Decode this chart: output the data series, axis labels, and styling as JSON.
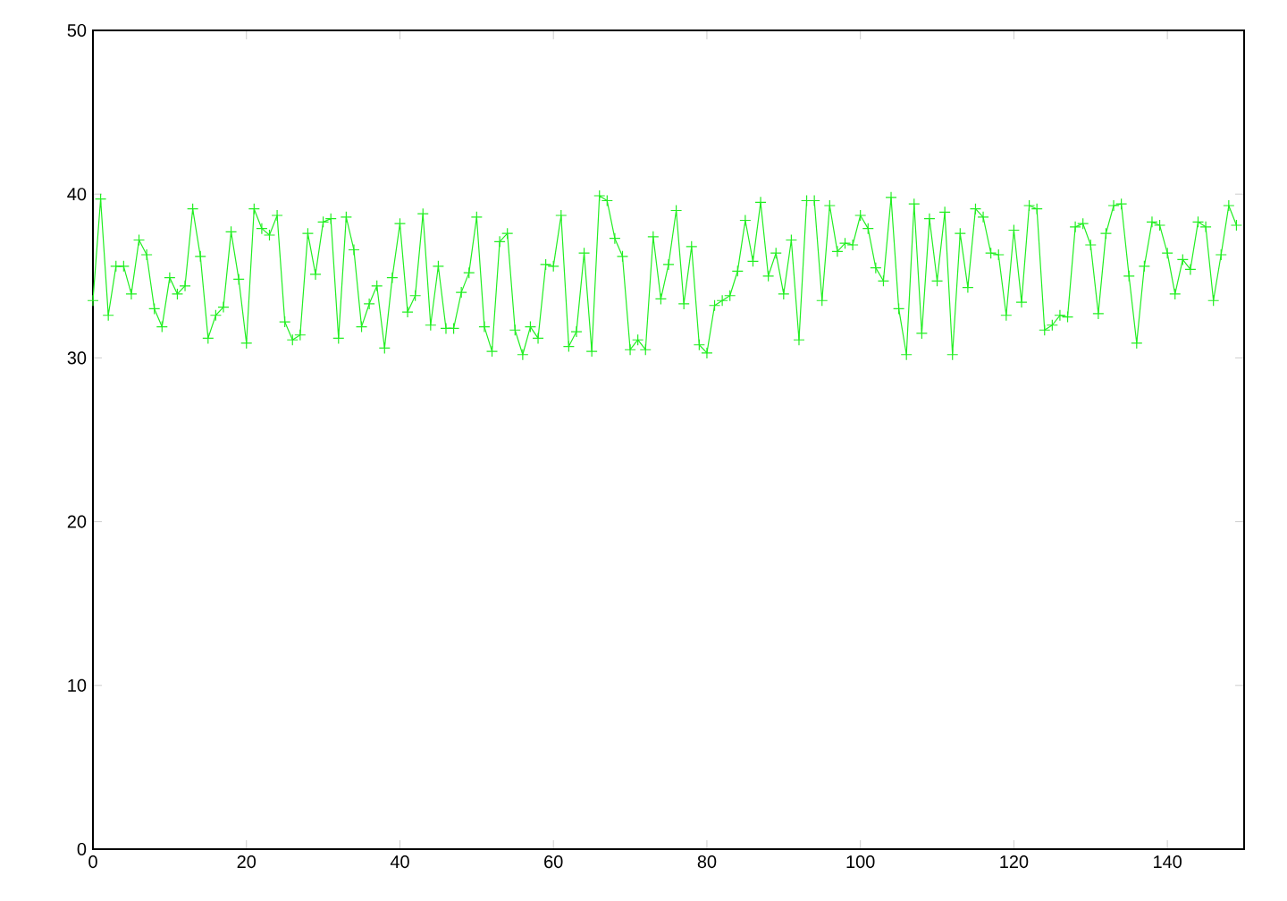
{
  "chart_data": {
    "type": "line",
    "marker": "cross",
    "color": "#22ee22",
    "x": [
      0,
      1,
      2,
      3,
      4,
      5,
      6,
      7,
      8,
      9,
      10,
      11,
      12,
      13,
      14,
      15,
      16,
      17,
      18,
      19,
      20,
      21,
      22,
      23,
      24,
      25,
      26,
      27,
      28,
      29,
      30,
      31,
      32,
      33,
      34,
      35,
      36,
      37,
      38,
      39,
      40,
      41,
      42,
      43,
      44,
      45,
      46,
      47,
      48,
      49,
      50,
      51,
      52,
      53,
      54,
      55,
      56,
      57,
      58,
      59,
      60,
      61,
      62,
      63,
      64,
      65,
      66,
      67,
      68,
      69,
      70,
      71,
      72,
      73,
      74,
      75,
      76,
      77,
      78,
      79,
      80,
      81,
      82,
      83,
      84,
      85,
      86,
      87,
      88,
      89,
      90,
      91,
      92,
      93,
      94,
      95,
      96,
      97,
      98,
      99,
      100,
      101,
      102,
      103,
      104,
      105,
      106,
      107,
      108,
      109,
      110,
      111,
      112,
      113,
      114,
      115,
      116,
      117,
      118,
      119,
      120,
      121,
      122,
      123,
      124,
      125,
      126,
      127,
      128,
      129,
      130,
      131,
      132,
      133,
      134,
      135,
      136,
      137,
      138,
      139,
      140,
      141,
      142,
      143,
      144,
      145,
      146,
      147,
      148,
      149
    ],
    "values": [
      33.5,
      39.7,
      32.6,
      35.6,
      35.6,
      33.9,
      37.2,
      36.3,
      33.0,
      31.9,
      34.9,
      33.9,
      34.4,
      39.1,
      36.2,
      31.2,
      32.6,
      33.1,
      37.7,
      34.8,
      30.9,
      39.1,
      37.9,
      37.5,
      38.7,
      32.2,
      31.1,
      31.4,
      37.6,
      35.1,
      38.3,
      38.5,
      31.2,
      38.6,
      36.6,
      31.9,
      33.3,
      34.4,
      30.6,
      34.9,
      38.2,
      32.8,
      33.8,
      38.8,
      32.0,
      35.6,
      31.8,
      31.8,
      34.0,
      35.2,
      38.6,
      31.9,
      30.4,
      37.1,
      37.6,
      31.7,
      30.2,
      31.9,
      31.2,
      35.7,
      35.6,
      38.7,
      30.7,
      31.6,
      36.4,
      30.4,
      39.9,
      39.6,
      37.3,
      36.2,
      30.5,
      31.1,
      30.5,
      37.4,
      33.6,
      35.7,
      39.0,
      33.3,
      36.8,
      30.8,
      30.3,
      33.2,
      33.5,
      33.8,
      35.3,
      38.4,
      35.9,
      39.5,
      35.0,
      36.4,
      33.9,
      37.2,
      31.1,
      39.6,
      39.6,
      33.5,
      39.3,
      36.5,
      37.0,
      36.9,
      38.7,
      37.9,
      35.5,
      34.7,
      39.8,
      33.0,
      30.2,
      39.4,
      31.5,
      38.5,
      34.7,
      38.9,
      30.2,
      37.6,
      34.3,
      39.1,
      38.6,
      36.4,
      36.3,
      32.6,
      37.8,
      33.4,
      39.3,
      39.1,
      31.7,
      32.0,
      32.6,
      32.5,
      38.0,
      38.2,
      36.9,
      32.7,
      37.6,
      39.3,
      39.4,
      35.0,
      30.9,
      35.6,
      38.3,
      38.1,
      36.4,
      33.9,
      36.0,
      35.4,
      38.3,
      38.0,
      33.5,
      36.3,
      39.3,
      38.1
    ],
    "xlim": [
      0,
      150
    ],
    "xticks": [
      0,
      20,
      40,
      60,
      80,
      100,
      120,
      140
    ],
    "ylim": [
      0,
      50
    ],
    "yticks": [
      0,
      10,
      20,
      30,
      40,
      50
    ]
  }
}
